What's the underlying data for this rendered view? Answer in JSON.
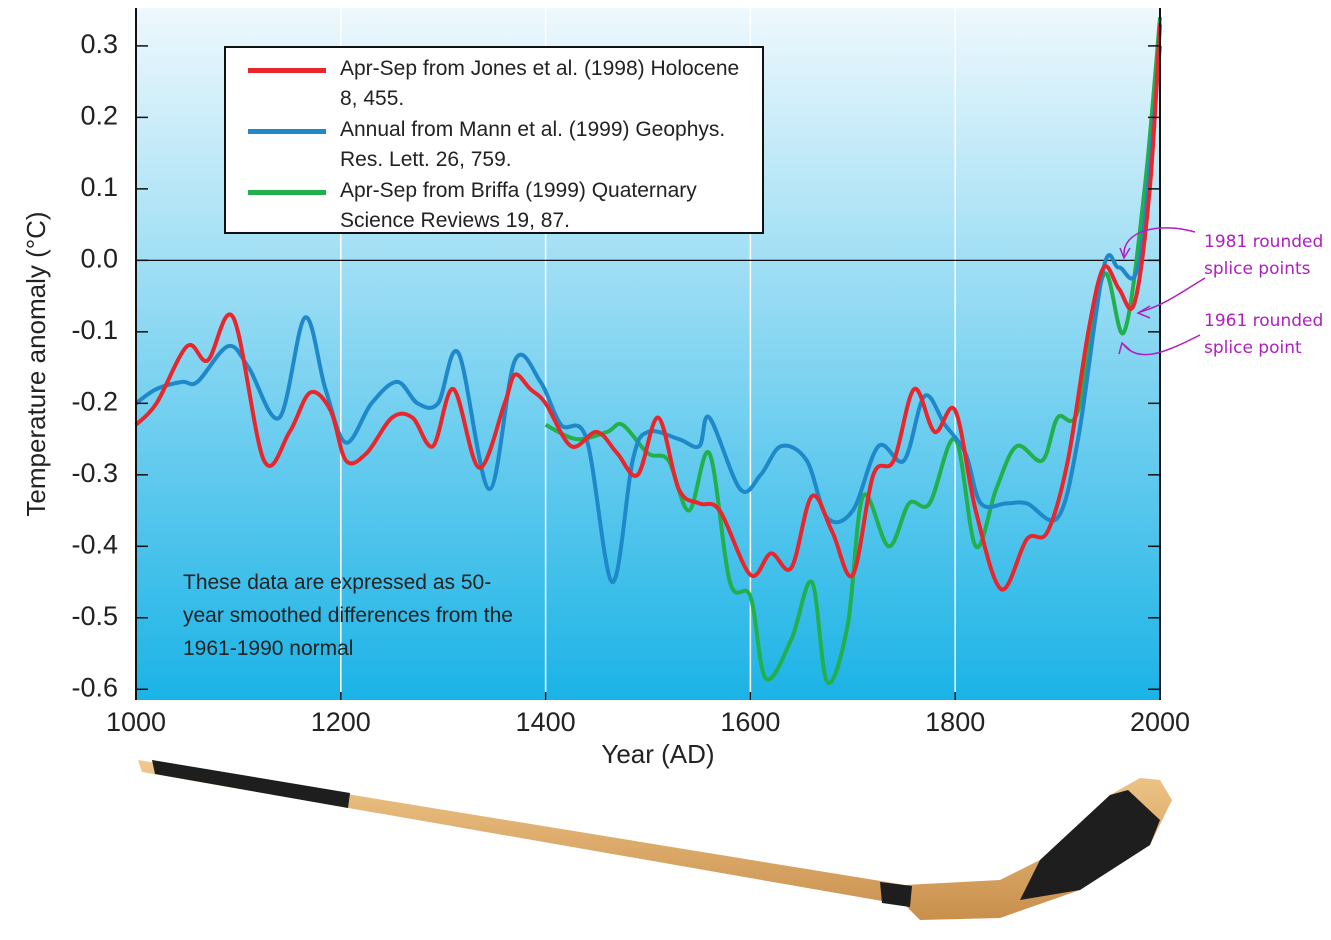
{
  "chart_data": {
    "type": "line",
    "xlabel": "Year (AD)",
    "ylabel": "Temperature anomaly (°C)",
    "xlim": [
      1000,
      2000
    ],
    "ylim": [
      -0.615,
      0.353
    ],
    "xticks": [
      1000,
      1200,
      1400,
      1600,
      1800,
      2000
    ],
    "yticks": [
      0.3,
      0.2,
      0.1,
      {
        "value": 0,
        "label": "0.0"
      },
      -0.1,
      -0.2,
      -0.3,
      -0.4,
      -0.5,
      -0.6
    ],
    "grid": true,
    "zero_line": true,
    "series": [
      {
        "name": "Apr-Sep from Jones et al. (1998) Holocene 8, 455.",
        "color": "#e8262b",
        "x": [
          1000,
          1020,
          1050,
          1070,
          1095,
          1125,
          1150,
          1170,
          1190,
          1205,
          1225,
          1250,
          1270,
          1290,
          1310,
          1335,
          1360,
          1370,
          1385,
          1400,
          1425,
          1450,
          1470,
          1490,
          1510,
          1530,
          1550,
          1570,
          1600,
          1620,
          1640,
          1660,
          1680,
          1700,
          1720,
          1740,
          1760,
          1780,
          1800,
          1820,
          1845,
          1870,
          1890,
          1910,
          1930,
          1945,
          1960,
          1975,
          1990,
          2000
        ],
        "values": [
          -0.23,
          -0.2,
          -0.12,
          -0.14,
          -0.08,
          -0.28,
          -0.24,
          -0.185,
          -0.21,
          -0.28,
          -0.27,
          -0.22,
          -0.22,
          -0.26,
          -0.18,
          -0.29,
          -0.2,
          -0.16,
          -0.18,
          -0.2,
          -0.26,
          -0.24,
          -0.27,
          -0.3,
          -0.22,
          -0.32,
          -0.34,
          -0.35,
          -0.44,
          -0.41,
          -0.43,
          -0.33,
          -0.38,
          -0.44,
          -0.3,
          -0.28,
          -0.18,
          -0.24,
          -0.21,
          -0.35,
          -0.46,
          -0.39,
          -0.38,
          -0.28,
          -0.1,
          -0.01,
          -0.04,
          -0.06,
          0.1,
          0.33
        ]
      },
      {
        "name": "Annual from Mann et al. (1999) Geophys. Res. Lett. 26, 759.",
        "color": "#1e88c8",
        "x": [
          1000,
          1020,
          1045,
          1060,
          1090,
          1110,
          1140,
          1165,
          1185,
          1205,
          1230,
          1255,
          1275,
          1295,
          1315,
          1345,
          1370,
          1395,
          1415,
          1440,
          1465,
          1485,
          1500,
          1530,
          1550,
          1560,
          1590,
          1610,
          1630,
          1655,
          1675,
          1700,
          1725,
          1750,
          1770,
          1790,
          1810,
          1825,
          1850,
          1870,
          1900,
          1920,
          1945,
          1960,
          1980,
          2000
        ],
        "values": [
          -0.2,
          -0.18,
          -0.17,
          -0.17,
          -0.12,
          -0.15,
          -0.22,
          -0.08,
          -0.18,
          -0.255,
          -0.2,
          -0.17,
          -0.2,
          -0.2,
          -0.13,
          -0.32,
          -0.14,
          -0.17,
          -0.23,
          -0.25,
          -0.45,
          -0.28,
          -0.24,
          -0.25,
          -0.26,
          -0.22,
          -0.32,
          -0.3,
          -0.26,
          -0.28,
          -0.36,
          -0.35,
          -0.26,
          -0.28,
          -0.19,
          -0.23,
          -0.27,
          -0.34,
          -0.34,
          -0.34,
          -0.36,
          -0.25,
          -0.01,
          -0.01,
          0.0,
          0.3
        ]
      },
      {
        "name": "Apr-Sep from Briffa (1999) Quaternary Science Reviews 19, 87.",
        "color": "#22b04c",
        "x": [
          1400,
          1430,
          1460,
          1475,
          1500,
          1520,
          1540,
          1560,
          1580,
          1600,
          1615,
          1640,
          1660,
          1675,
          1695,
          1710,
          1735,
          1755,
          1775,
          1800,
          1820,
          1840,
          1860,
          1885,
          1900,
          1920,
          1945,
          1965,
          1985,
          2000
        ],
        "values": [
          -0.23,
          -0.25,
          -0.24,
          -0.23,
          -0.27,
          -0.28,
          -0.35,
          -0.27,
          -0.45,
          -0.47,
          -0.585,
          -0.53,
          -0.45,
          -0.59,
          -0.51,
          -0.33,
          -0.4,
          -0.34,
          -0.34,
          -0.25,
          -0.4,
          -0.32,
          -0.26,
          -0.28,
          -0.22,
          -0.21,
          -0.02,
          -0.1,
          0.1,
          0.34
        ]
      }
    ],
    "annotations": [
      "These data are expressed as 50-year smoothed differences from the 1961-1990 normal",
      "1981 rounded splice points",
      "1961 rounded splice point"
    ]
  }
}
